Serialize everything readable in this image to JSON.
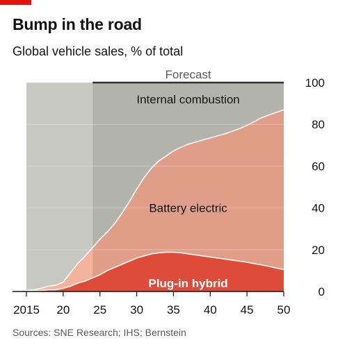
{
  "title": "Bump in the road",
  "subtitle": "Global vehicle sales, % of total",
  "source": "Sources: SNE Research; IHS; Bernstein",
  "colors": {
    "accent": "#e3120b",
    "background_panel": "#c8c8c3",
    "forecast_panel": "#b3b3ad",
    "internal_combustion": "#b3b3ad",
    "battery_electric": "#e09d88",
    "battery_electric_light": "#f4b39c",
    "plug_in_hybrid": "#df4b39",
    "boundary_line": "#ffffff"
  },
  "chart_data": {
    "type": "area",
    "stacked": true,
    "title": "Bump in the road",
    "subtitle": "Global vehicle sales, % of total",
    "xlabel": "",
    "ylabel": "",
    "xlim": [
      2015,
      2050
    ],
    "ylim": [
      0,
      100
    ],
    "x_ticks": [
      2015,
      2020,
      2025,
      2030,
      2035,
      2040,
      2045,
      2050
    ],
    "x_tick_labels": [
      "2015",
      "20",
      "25",
      "30",
      "35",
      "40",
      "45",
      "50"
    ],
    "y_ticks": [
      0,
      20,
      40,
      60,
      80,
      100
    ],
    "y_tick_labels": [
      "0",
      "20",
      "40",
      "60",
      "80",
      "100"
    ],
    "y_axis_side": "right",
    "grid": true,
    "forecast": {
      "label": "Forecast",
      "start": 2024,
      "end": 2050
    },
    "x": [
      2015,
      2016,
      2017,
      2018,
      2019,
      2020,
      2021,
      2022,
      2023,
      2024,
      2025,
      2026,
      2027,
      2028,
      2029,
      2030,
      2031,
      2032,
      2033,
      2034,
      2035,
      2036,
      2037,
      2038,
      2039,
      2040,
      2041,
      2042,
      2043,
      2044,
      2045,
      2046,
      2047,
      2048,
      2049,
      2050
    ],
    "series": [
      {
        "name": "Plug-in hybrid",
        "label_position": {
          "x": 2037,
          "y": 4
        },
        "values": [
          0.2,
          0.3,
          0.5,
          0.8,
          0.8,
          1.5,
          2.5,
          4,
          5,
          6.5,
          8,
          10,
          11.5,
          13,
          14.5,
          16,
          17,
          18,
          18.5,
          18.8,
          18.8,
          18.5,
          18,
          17.5,
          17,
          16.5,
          16,
          15.5,
          15,
          14.5,
          14,
          13.3,
          12.7,
          12,
          11.2,
          10.5
        ]
      },
      {
        "name": "Battery electric",
        "label_position": {
          "x": 2037,
          "y": 40
        },
        "values": [
          0.3,
          0.5,
          1,
          1.7,
          2.2,
          3,
          6.5,
          9.5,
          12,
          14.5,
          17,
          18.5,
          21,
          24.5,
          28.5,
          33,
          37.5,
          41,
          44,
          46,
          48.5,
          50.5,
          52.5,
          54,
          55.5,
          57,
          58.5,
          60,
          61.7,
          63.5,
          65.5,
          68,
          70.5,
          72.5,
          74.5,
          76.5
        ]
      },
      {
        "name": "Internal combustion",
        "label_position": {
          "x": 2037,
          "y": 92
        },
        "values": [
          99.5,
          99.2,
          98.5,
          97.5,
          97,
          95.5,
          91,
          86.5,
          83,
          79,
          75,
          71.5,
          67.5,
          62.5,
          57,
          51,
          45.5,
          41,
          37.5,
          35.2,
          32.7,
          31,
          29.5,
          28.5,
          27.5,
          26.5,
          25.5,
          24.5,
          23.3,
          22,
          20.5,
          18.7,
          16.8,
          15.5,
          14.3,
          13
        ]
      }
    ]
  }
}
